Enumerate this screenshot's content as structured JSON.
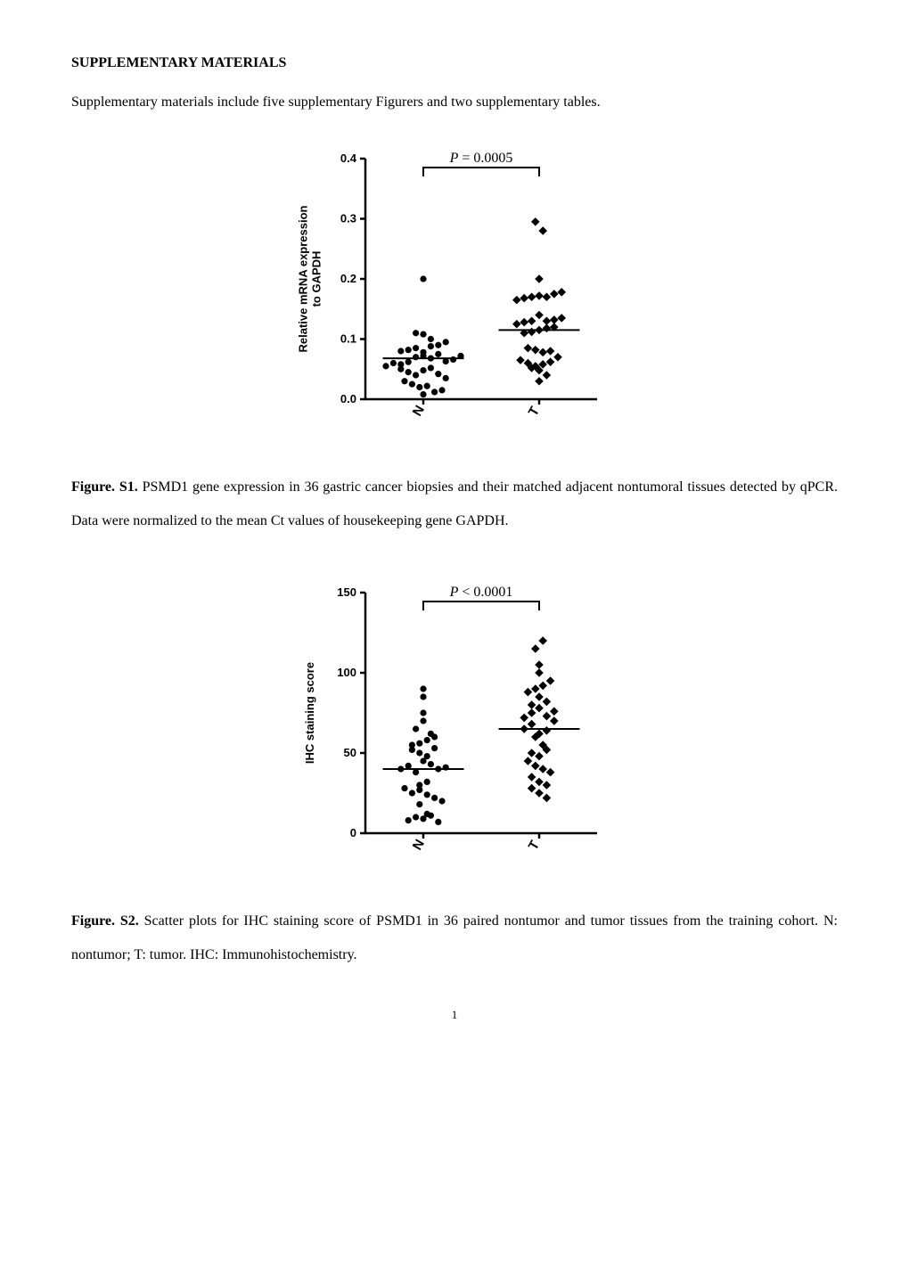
{
  "heading": "SUPPLEMENTARY MATERIALS",
  "intro": "Supplementary materials include five supplementary Figurers and two supplementary tables.",
  "figS1": {
    "type": "scatter",
    "pvalue_label": "P = 0.0005",
    "ylabel_line1": "Relative mRNA expression",
    "ylabel_line2": "to GAPDH",
    "ylim": [
      0.0,
      0.4
    ],
    "yticks": [
      0.0,
      0.1,
      0.2,
      0.3,
      0.4
    ],
    "ytick_labels": [
      "0.0",
      "0.1",
      "0.2",
      "0.3",
      "0.4"
    ],
    "categories": [
      "N",
      "T"
    ],
    "series": {
      "N": {
        "mean_line_y": 0.068,
        "marker": "circle",
        "points": [
          0.055,
          0.06,
          0.058,
          0.062,
          0.07,
          0.072,
          0.068,
          0.075,
          0.08,
          0.082,
          0.085,
          0.11,
          0.108,
          0.05,
          0.045,
          0.04,
          0.048,
          0.052,
          0.03,
          0.025,
          0.02,
          0.022,
          0.012,
          0.008,
          0.015,
          0.063,
          0.066,
          0.072,
          0.078,
          0.088,
          0.042,
          0.035,
          0.2,
          0.09,
          0.095,
          0.1
        ]
      },
      "T": {
        "mean_line_y": 0.115,
        "marker": "diamond",
        "points": [
          0.085,
          0.082,
          0.078,
          0.08,
          0.11,
          0.112,
          0.115,
          0.118,
          0.12,
          0.125,
          0.128,
          0.13,
          0.14,
          0.165,
          0.168,
          0.17,
          0.172,
          0.17,
          0.175,
          0.178,
          0.2,
          0.065,
          0.06,
          0.055,
          0.058,
          0.052,
          0.048,
          0.04,
          0.03,
          0.295,
          0.28,
          0.13,
          0.132,
          0.135,
          0.062,
          0.07
        ]
      }
    },
    "caption_label": "Figure. S1.",
    "caption_text": " PSMD1 gene expression in 36 gastric cancer biopsies and their matched adjacent nontumoral tissues detected by qPCR. Data were normalized to the mean Ct values of housekeeping gene GAPDH."
  },
  "figS2": {
    "type": "scatter",
    "pvalue_label": "P < 0.0001",
    "ylabel": "IHC staining score",
    "ylim": [
      0,
      150
    ],
    "yticks": [
      0,
      50,
      100,
      150
    ],
    "ytick_labels": [
      "0",
      "50",
      "100",
      "150"
    ],
    "categories": [
      "N",
      "T"
    ],
    "series": {
      "N": {
        "mean_line_y": 40,
        "marker": "circle",
        "points": [
          40,
          42,
          38,
          45,
          43,
          40,
          41,
          55,
          52,
          50,
          48,
          53,
          56,
          58,
          30,
          28,
          32,
          25,
          27,
          24,
          22,
          20,
          18,
          8,
          10,
          12,
          9,
          11,
          7,
          65,
          70,
          60,
          62,
          85,
          90,
          75
        ]
      },
      "T": {
        "mean_line_y": 65,
        "marker": "diamond",
        "points": [
          65,
          68,
          72,
          75,
          78,
          80,
          62,
          60,
          64,
          70,
          73,
          76,
          50,
          48,
          45,
          55,
          52,
          42,
          40,
          38,
          35,
          32,
          28,
          25,
          22,
          30,
          85,
          88,
          90,
          92,
          95,
          100,
          105,
          115,
          120,
          82
        ]
      }
    },
    "caption_label": "Figure. S2.",
    "caption_text": " Scatter plots for IHC staining score of PSMD1 in 36 paired nontumor and tumor tissues from the training cohort. N: nontumor; T: tumor. IHC: Immunohistochemistry."
  },
  "style": {
    "axis_color": "#000000",
    "marker_color": "#000000",
    "background_color": "#ffffff",
    "axis_stroke_width": 2.5,
    "marker_size": 4,
    "axis_font_size": 13,
    "label_font_size": 13,
    "pvalue_font_size": 16
  },
  "page_number": "1"
}
